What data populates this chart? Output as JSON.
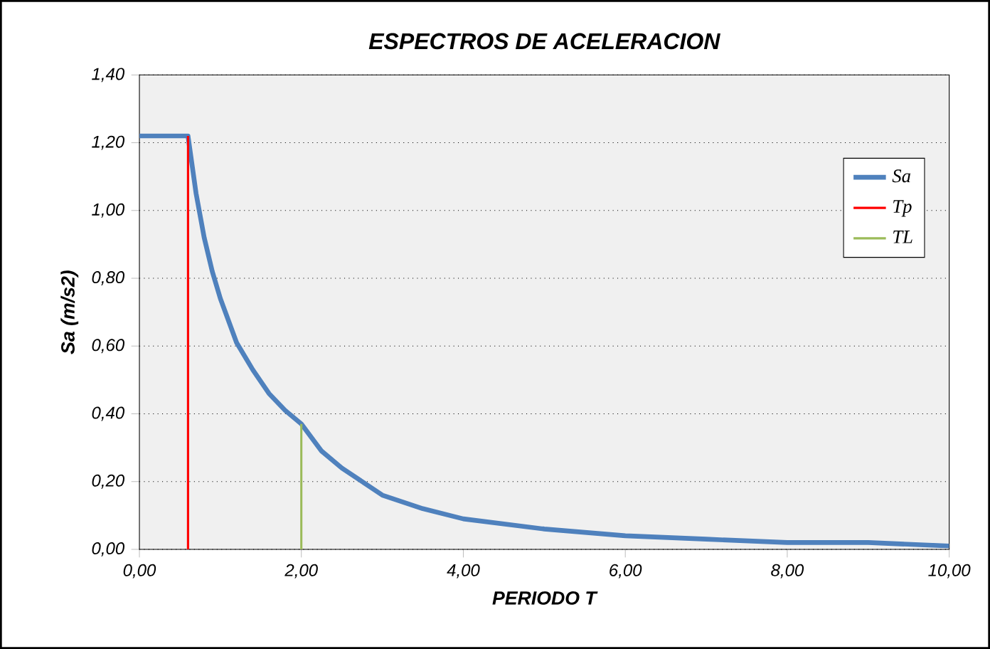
{
  "chart_data": {
    "type": "line",
    "title": "ESPECTROS DE ACELERACION",
    "xlabel": "PERIODO T",
    "ylabel": "Sa (m/s2)",
    "xlim": [
      0,
      10
    ],
    "ylim": [
      0,
      1.4
    ],
    "xticks": [
      {
        "value": 0,
        "label": "0,00"
      },
      {
        "value": 2,
        "label": "2,00"
      },
      {
        "value": 4,
        "label": "4,00"
      },
      {
        "value": 6,
        "label": "6,00"
      },
      {
        "value": 8,
        "label": "8,00"
      },
      {
        "value": 10,
        "label": "10,00"
      }
    ],
    "yticks": [
      {
        "value": 0,
        "label": "0,00"
      },
      {
        "value": 0.2,
        "label": "0,20"
      },
      {
        "value": 0.4,
        "label": "0,40"
      },
      {
        "value": 0.6,
        "label": "0,60"
      },
      {
        "value": 0.8,
        "label": "0,80"
      },
      {
        "value": 1.0,
        "label": "1,00"
      },
      {
        "value": 1.2,
        "label": "1,20"
      },
      {
        "value": 1.4,
        "label": "1,40"
      }
    ],
    "grid": "y",
    "legend": "right",
    "series": [
      {
        "name": "Sa",
        "color": "#4f81bd",
        "x": [
          0,
          0.6,
          0.7,
          0.8,
          0.9,
          1.0,
          1.2,
          1.4,
          1.6,
          1.8,
          2.0,
          2.25,
          2.5,
          3.0,
          3.5,
          4.0,
          5.0,
          6.0,
          7.0,
          8.0,
          9.0,
          10.0
        ],
        "values": [
          1.22,
          1.22,
          1.05,
          0.92,
          0.82,
          0.74,
          0.61,
          0.53,
          0.46,
          0.41,
          0.37,
          0.29,
          0.24,
          0.16,
          0.12,
          0.09,
          0.06,
          0.04,
          0.03,
          0.02,
          0.02,
          0.01
        ]
      },
      {
        "name": "Tp",
        "color": "#ff0000",
        "x": [
          0.6,
          0.6
        ],
        "values": [
          0,
          1.22
        ]
      },
      {
        "name": "TL",
        "color": "#9bbb59",
        "x": [
          2.0,
          2.0
        ],
        "values": [
          0,
          0.37
        ]
      }
    ]
  }
}
